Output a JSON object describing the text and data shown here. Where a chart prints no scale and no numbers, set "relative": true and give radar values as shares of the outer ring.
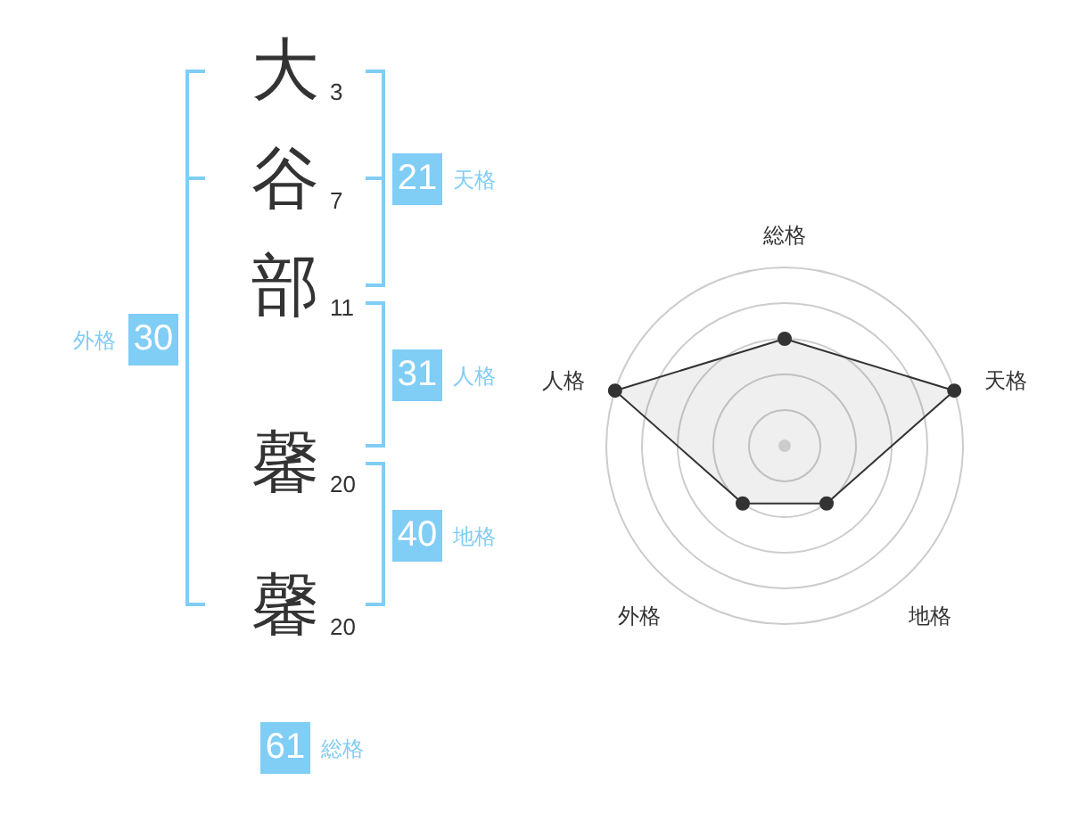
{
  "chart_data": [
    {
      "type": "other",
      "categories": [
        "大",
        "谷",
        "部",
        "馨",
        "馨"
      ],
      "values": [
        3,
        7,
        11,
        20,
        20
      ],
      "data_labels": true,
      "annotations": [
        "21",
        "天格",
        "31",
        "人格",
        "40",
        "地格",
        "30",
        "外格",
        "61",
        "総格"
      ]
    },
    {
      "type": "radar",
      "categories": [
        "総格",
        "天格",
        "地格",
        "外格",
        "人格"
      ],
      "values": [
        0.6,
        1,
        0.4,
        0.4,
        1
      ],
      "color": "#333333",
      "relative": true,
      "grid": true,
      "marker": "circle"
    }
  ]
}
